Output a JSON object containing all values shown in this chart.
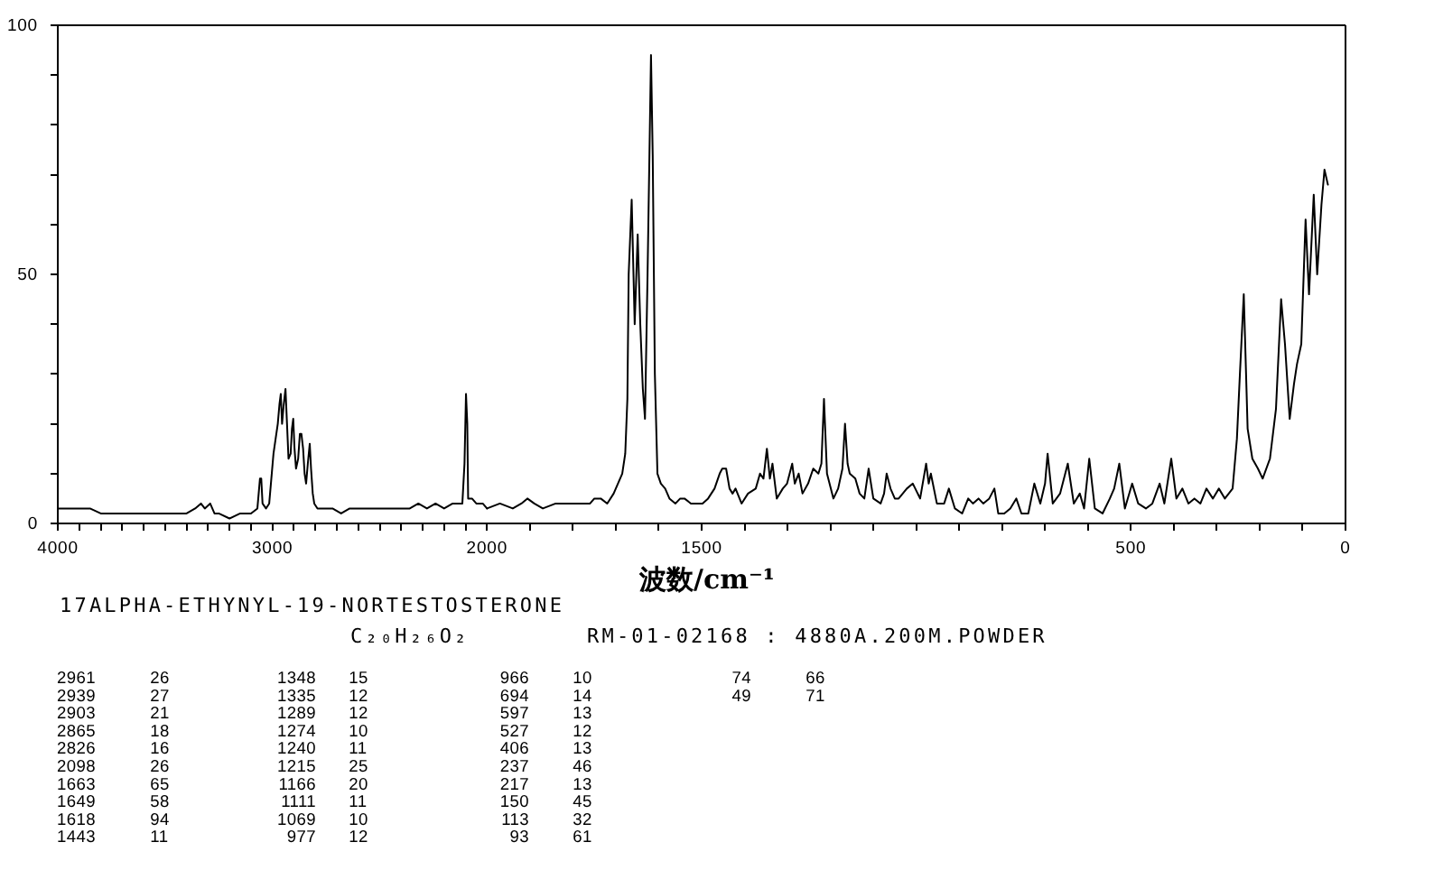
{
  "chart_data": [
    {
      "type": "line",
      "x": [
        4000,
        3950,
        3900,
        3850,
        3800,
        3750,
        3700,
        3650,
        3600,
        3550,
        3500,
        3450,
        3400,
        3360,
        3333,
        3315,
        3290,
        3270,
        3250,
        3200,
        3150,
        3100,
        3070,
        3058,
        3052,
        3046,
        3030,
        3015,
        3005,
        2995,
        2985,
        2975,
        2967,
        2961,
        2955,
        2947,
        2939,
        2932,
        2925,
        2915,
        2909,
        2903,
        2897,
        2890,
        2880,
        2872,
        2865,
        2857,
        2850,
        2843,
        2835,
        2826,
        2820,
        2812,
        2805,
        2790,
        2760,
        2720,
        2680,
        2640,
        2600,
        2560,
        2520,
        2480,
        2440,
        2400,
        2360,
        2320,
        2280,
        2240,
        2200,
        2160,
        2130,
        2115,
        2105,
        2098,
        2092,
        2088,
        2070,
        2050,
        2020,
        2000
      ],
      "series": [
        {
          "color": "#000000",
          "values": [
            3,
            3,
            3,
            3,
            2,
            2,
            2,
            2,
            2,
            2,
            2,
            2,
            2,
            3,
            4,
            3,
            4,
            2,
            2,
            1,
            2,
            2,
            3,
            9,
            9,
            4,
            3,
            4,
            9,
            14,
            17,
            20,
            24,
            26,
            20,
            24,
            27,
            20,
            13,
            14,
            19,
            21,
            15,
            11,
            13,
            18,
            18,
            15,
            10,
            8,
            12,
            16,
            11,
            6,
            4,
            3,
            3,
            3,
            2,
            3,
            3,
            3,
            3,
            3,
            3,
            3,
            3,
            4,
            3,
            4,
            3,
            4,
            4,
            4,
            12,
            26,
            20,
            5,
            5,
            4,
            4,
            3
          ]
        }
      ],
      "xlim": [
        4000,
        2000
      ],
      "xticks": [
        4000,
        {
          "value": 3900,
          "label": null
        },
        {
          "value": 3800,
          "label": null
        },
        {
          "value": 3700,
          "label": null
        },
        {
          "value": 3600,
          "label": null
        },
        {
          "value": 3500,
          "label": null
        },
        {
          "value": 3400,
          "label": null
        },
        {
          "value": 3300,
          "label": null
        },
        {
          "value": 3200,
          "label": null
        },
        {
          "value": 3100,
          "label": null
        },
        3000,
        {
          "value": 2900,
          "label": null
        },
        {
          "value": 2800,
          "label": null
        },
        {
          "value": 2700,
          "label": null
        },
        {
          "value": 2600,
          "label": null
        },
        {
          "value": 2500,
          "label": null
        },
        {
          "value": 2400,
          "label": null
        },
        {
          "value": 2300,
          "label": null
        },
        {
          "value": 2200,
          "label": null
        },
        {
          "value": 2100,
          "label": null
        },
        2000
      ],
      "ylim": [
        0,
        100
      ],
      "yticks": [
        0,
        {
          "value": 10,
          "label": null
        },
        {
          "value": 20,
          "label": null
        },
        {
          "value": 30,
          "label": null
        },
        {
          "value": 40,
          "label": null
        },
        50,
        {
          "value": 60,
          "label": null
        },
        {
          "value": 70,
          "label": null
        },
        {
          "value": 80,
          "label": null
        },
        {
          "value": 90,
          "label": null
        },
        100
      ],
      "annotations": [
        "17ALPHA-ETHYNYL-19-NORTESTOSTERONE",
        "C₂₀H₂₆O₂",
        "RM-01-02168 : 4880A.200M.POWDER",
        "2961 26",
        "2939 27",
        "2903 21",
        "2865 18",
        "2826 16",
        "2098 26",
        "1663 65",
        "1649 58",
        "1618 94",
        "1443 11",
        "1348 15",
        "1335 12",
        "1289 12",
        "1274 10",
        "1240 11",
        "1215 25",
        "1166 20",
        "1111 11",
        "1069 10",
        "977 12",
        "966 10",
        "694 14",
        "597 13",
        "527 12",
        "406 13",
        "237 46",
        "217 13",
        "150 45",
        "113 32",
        "93 61",
        "74 66",
        "49 71"
      ]
    },
    {
      "type": "line",
      "xlabel": "波数/cm⁻¹",
      "x": [
        2000,
        1970,
        1940,
        1920,
        1906,
        1890,
        1870,
        1840,
        1810,
        1780,
        1760,
        1750,
        1735,
        1720,
        1705,
        1695,
        1685,
        1678,
        1673,
        1670,
        1663,
        1656,
        1649,
        1643,
        1637,
        1632,
        1626,
        1618,
        1614,
        1609,
        1603,
        1595,
        1585,
        1575,
        1561,
        1550,
        1540,
        1525,
        1512,
        1498,
        1485,
        1470,
        1458,
        1452,
        1443,
        1435,
        1428,
        1421,
        1407,
        1392,
        1374,
        1364,
        1356,
        1348,
        1341,
        1335,
        1325,
        1311,
        1301,
        1289,
        1283,
        1274,
        1265,
        1252,
        1240,
        1228,
        1221,
        1215,
        1208,
        1193,
        1182,
        1172,
        1166,
        1160,
        1155,
        1142,
        1132,
        1121,
        1111,
        1100,
        1083,
        1075,
        1069,
        1060,
        1050,
        1041,
        1022,
        1008,
        991,
        977,
        971,
        966,
        952,
        935,
        924,
        910,
        893,
        879,
        868,
        855,
        844,
        830,
        818,
        809,
        795,
        781,
        767,
        755,
        739,
        725,
        711,
        700,
        694,
        682,
        665,
        647,
        633,
        619,
        609,
        597,
        584,
        566,
        549,
        539,
        527,
        514,
        497,
        483,
        465,
        450,
        433,
        422,
        406,
        394,
        380,
        366,
        352,
        338,
        324,
        309,
        295,
        281,
        263,
        253,
        246,
        237,
        228,
        217,
        204,
        193,
        176,
        162,
        150,
        141,
        130,
        120,
        113,
        103,
        93,
        85,
        74,
        66,
        56,
        49,
        41
      ],
      "series": [
        {
          "color": "#000000",
          "values": [
            3,
            4,
            3,
            4,
            5,
            4,
            3,
            4,
            4,
            4,
            4,
            5,
            5,
            4,
            6,
            8,
            10,
            14,
            25,
            50,
            65,
            40,
            58,
            40,
            27,
            21,
            50,
            94,
            74,
            30,
            10,
            8,
            7,
            5,
            4,
            5,
            5,
            4,
            4,
            4,
            5,
            7,
            10,
            11,
            11,
            7,
            6,
            7,
            4,
            6,
            7,
            10,
            9,
            15,
            9,
            12,
            5,
            7,
            8,
            12,
            8,
            10,
            6,
            8,
            11,
            10,
            12,
            25,
            10,
            5,
            7,
            11,
            20,
            12,
            10,
            9,
            6,
            5,
            11,
            5,
            4,
            6,
            10,
            7,
            5,
            5,
            7,
            8,
            5,
            12,
            8,
            10,
            4,
            4,
            7,
            3,
            2,
            5,
            4,
            5,
            4,
            5,
            7,
            2,
            2,
            3,
            5,
            2,
            2,
            8,
            4,
            8,
            14,
            4,
            6,
            12,
            4,
            6,
            3,
            13,
            3,
            2,
            5,
            7,
            12,
            3,
            8,
            4,
            3,
            4,
            8,
            4,
            13,
            5,
            7,
            4,
            5,
            4,
            7,
            5,
            7,
            5,
            7,
            17,
            30,
            46,
            19,
            13,
            11,
            9,
            13,
            23,
            45,
            36,
            21,
            28,
            32,
            36,
            61,
            46,
            66,
            50,
            64,
            71,
            68
          ]
        }
      ],
      "xlim": [
        2000,
        0
      ],
      "xticks": [
        {
          "value": 1900,
          "label": null
        },
        {
          "value": 1800,
          "label": null
        },
        {
          "value": 1700,
          "label": null
        },
        {
          "value": 1600,
          "label": null
        },
        1500,
        {
          "value": 1400,
          "label": null
        },
        {
          "value": 1300,
          "label": null
        },
        {
          "value": 1200,
          "label": null
        },
        {
          "value": 1100,
          "label": null
        },
        {
          "value": 1000,
          "label": null
        },
        {
          "value": 900,
          "label": null
        },
        {
          "value": 800,
          "label": null
        },
        {
          "value": 700,
          "label": null
        },
        {
          "value": 600,
          "label": null
        },
        500,
        {
          "value": 400,
          "label": null
        },
        {
          "value": 300,
          "label": null
        },
        {
          "value": 200,
          "label": null
        },
        {
          "value": 100,
          "label": null
        },
        0
      ],
      "ylim": [
        0,
        100
      ],
      "tick_labels": "x"
    }
  ]
}
